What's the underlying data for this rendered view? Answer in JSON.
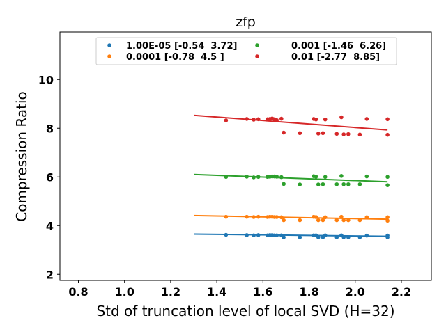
{
  "chart_data": {
    "type": "scatter",
    "title": "zfp",
    "xlabel": "Std of truncation level of local SVD (H=32)",
    "ylabel": "Compression Ratio",
    "xlim": [
      0.72,
      2.33
    ],
    "ylim": [
      1.75,
      11.95
    ],
    "xticks": [
      0.8,
      1.0,
      1.2,
      1.4,
      1.6,
      1.8,
      2.0,
      2.2
    ],
    "xtick_labels": [
      "0.8",
      "1.0",
      "1.2",
      "1.4",
      "1.6",
      "1.8",
      "2.0",
      "2.2"
    ],
    "yticks": [
      2,
      4,
      6,
      8,
      10
    ],
    "ytick_labels": [
      "2",
      "4",
      "6",
      "8",
      "10"
    ],
    "grid": false,
    "legend_position": "top-center",
    "series": [
      {
        "name": "1.00E-05 [-0.54  3.72]",
        "color": "#1f77b4",
        "x": [
          1.44,
          1.53,
          1.56,
          1.58,
          1.62,
          1.63,
          1.64,
          1.65,
          1.66,
          1.68,
          1.69,
          1.76,
          1.82,
          1.83,
          1.84,
          1.86,
          1.87,
          1.92,
          1.94,
          1.95,
          1.97,
          2.02,
          2.05,
          2.14,
          2.14
        ],
        "y": [
          3.62,
          3.61,
          3.6,
          3.61,
          3.6,
          3.61,
          3.61,
          3.6,
          3.6,
          3.6,
          3.52,
          3.52,
          3.6,
          3.6,
          3.52,
          3.52,
          3.6,
          3.52,
          3.6,
          3.52,
          3.52,
          3.52,
          3.59,
          3.52,
          3.59
        ],
        "fit": {
          "x": [
            1.3,
            2.14
          ],
          "y": [
            3.65,
            3.56
          ]
        }
      },
      {
        "name": "0.0001 [-0.78  4.5 ]",
        "color": "#ff7f0e",
        "x": [
          1.44,
          1.53,
          1.56,
          1.58,
          1.62,
          1.63,
          1.64,
          1.65,
          1.66,
          1.68,
          1.69,
          1.76,
          1.82,
          1.83,
          1.84,
          1.86,
          1.87,
          1.92,
          1.94,
          1.95,
          1.97,
          2.02,
          2.05,
          2.14,
          2.14
        ],
        "y": [
          4.36,
          4.36,
          4.35,
          4.36,
          4.35,
          4.36,
          4.36,
          4.35,
          4.35,
          4.34,
          4.22,
          4.22,
          4.36,
          4.35,
          4.22,
          4.22,
          4.34,
          4.22,
          4.36,
          4.22,
          4.22,
          4.22,
          4.34,
          4.2,
          4.34
        ],
        "fit": {
          "x": [
            1.3,
            2.14
          ],
          "y": [
            4.41,
            4.26
          ]
        }
      },
      {
        "name": "0.001 [-1.46  6.26]",
        "color": "#2ca02c",
        "x": [
          1.44,
          1.53,
          1.56,
          1.58,
          1.62,
          1.63,
          1.64,
          1.65,
          1.66,
          1.68,
          1.69,
          1.76,
          1.82,
          1.83,
          1.84,
          1.86,
          1.87,
          1.92,
          1.94,
          1.95,
          1.97,
          2.02,
          2.05,
          2.14,
          2.14
        ],
        "y": [
          6.0,
          6.01,
          5.98,
          6.0,
          6.0,
          6.01,
          6.02,
          6.02,
          6.01,
          5.99,
          5.71,
          5.69,
          6.03,
          6.01,
          5.69,
          5.7,
          6.0,
          5.7,
          6.04,
          5.7,
          5.7,
          5.7,
          6.02,
          5.66,
          6.0
        ],
        "fit": {
          "x": [
            1.3,
            2.14
          ],
          "y": [
            6.1,
            5.8
          ]
        }
      },
      {
        "name": "0.01 [-2.77  8.85]",
        "color": "#d62728",
        "x": [
          1.44,
          1.53,
          1.56,
          1.58,
          1.62,
          1.63,
          1.64,
          1.65,
          1.66,
          1.68,
          1.69,
          1.76,
          1.82,
          1.83,
          1.84,
          1.86,
          1.87,
          1.92,
          1.94,
          1.95,
          1.97,
          2.02,
          2.05,
          2.14,
          2.14
        ],
        "y": [
          8.32,
          8.38,
          8.35,
          8.37,
          8.37,
          8.38,
          8.4,
          8.37,
          8.33,
          8.39,
          7.82,
          7.8,
          8.38,
          8.36,
          7.78,
          7.8,
          8.36,
          7.77,
          8.45,
          7.75,
          7.76,
          7.74,
          8.38,
          7.73,
          8.37
        ],
        "fit": {
          "x": [
            1.3,
            2.14
          ],
          "y": [
            8.53,
            7.93
          ]
        }
      }
    ]
  }
}
